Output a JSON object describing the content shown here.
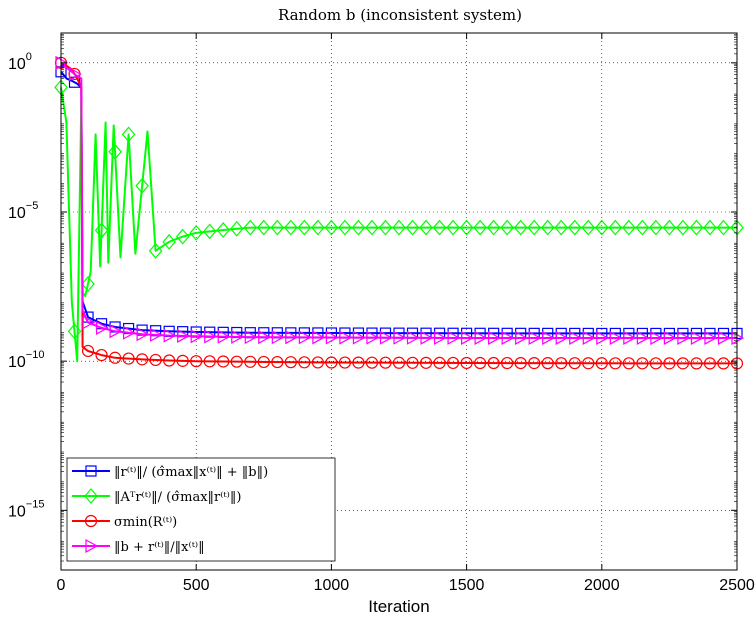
{
  "chart_data": {
    "type": "line",
    "title": "Random b (inconsistent system)",
    "xlabel": "Iteration",
    "ylabel": "",
    "yscale": "log",
    "xlim": [
      0,
      2500
    ],
    "ylim_exp": [
      -17,
      1
    ],
    "grid": true,
    "legend_placement": "bottom-left",
    "x_ticks": [
      "0",
      "500",
      "1000",
      "1500",
      "2000",
      "2500"
    ],
    "y_ticks": [
      {
        "base": "10",
        "exp": "0"
      },
      {
        "base": "10",
        "exp": "−5"
      },
      {
        "base": "10",
        "exp": "−10"
      },
      {
        "base": "10",
        "exp": "−15"
      }
    ],
    "series": [
      {
        "name": "‖r⁽ᵗ⁾‖/ (σ̂max‖x⁽ᵗ⁾‖ + ‖b‖)",
        "color": "#0000ff",
        "marker": "square",
        "x": [
          0,
          20,
          40,
          60,
          75,
          80,
          100,
          150,
          200,
          300,
          400,
          500,
          700,
          1000,
          1500,
          2000,
          2500
        ],
        "y": [
          0.5,
          0.3,
          0.25,
          0.2,
          0.15,
          1e-08,
          3e-09,
          1.8e-09,
          1.4e-09,
          1.1e-09,
          1e-09,
          9.5e-10,
          9e-10,
          8.8e-10,
          8.6e-10,
          8.5e-10,
          8.5e-10
        ]
      },
      {
        "name": "‖Aᵀr⁽ᵗ⁾‖/ (σ̂max‖r⁽ᵗ⁾‖)",
        "color": "#00ff00",
        "marker": "diamond",
        "x": [
          0,
          20,
          40,
          60,
          75,
          80,
          90,
          110,
          128,
          145,
          165,
          175,
          195,
          220,
          250,
          275,
          320,
          350,
          400,
          450,
          500,
          600,
          700,
          800,
          1000,
          1250,
          1500,
          1750,
          2000,
          2250,
          2500
        ],
        "y": [
          0.15,
          0.01,
          1e-08,
          1e-10,
          0.05,
          2e-08,
          1.5e-08,
          1e-07,
          0.004,
          1.5e-07,
          0.01,
          2e-07,
          0.008,
          3e-07,
          0.004,
          4e-07,
          0.005,
          5e-07,
          1e-06,
          1.5e-06,
          2e-06,
          2.5e-06,
          3e-06,
          3e-06,
          3e-06,
          3e-06,
          3e-06,
          3e-06,
          3e-06,
          3e-06,
          3e-06
        ]
      },
      {
        "name": "σmin(R⁽ᵗ⁾)",
        "color": "#ff0000",
        "marker": "circle",
        "x": [
          0,
          20,
          40,
          60,
          75,
          80,
          100,
          150,
          200,
          300,
          400,
          500,
          700,
          1000,
          1500,
          2000,
          2500
        ],
        "y": [
          1.0,
          0.8,
          0.6,
          0.3,
          0.15,
          3e-10,
          2.2e-10,
          1.6e-10,
          1.3e-10,
          1.15e-10,
          1.05e-10,
          1e-10,
          9.5e-11,
          9e-11,
          8.7e-11,
          8.5e-11,
          8.4e-11
        ]
      },
      {
        "name": "‖b + r⁽ᵗ⁾‖/‖x⁽ᵗ⁾‖",
        "color": "#ff00ff",
        "marker": "triangle-right",
        "x": [
          0,
          20,
          40,
          60,
          75,
          80,
          100,
          150,
          200,
          300,
          400,
          500,
          700,
          1000,
          1500,
          2000,
          2500
        ],
        "y": [
          1.0,
          0.7,
          0.5,
          0.35,
          0.3,
          5e-09,
          2e-09,
          1.3e-09,
          1e-09,
          8e-10,
          7.2e-10,
          6.8e-10,
          6.4e-10,
          6.2e-10,
          6e-10,
          6e-10,
          6e-10
        ]
      }
    ]
  }
}
